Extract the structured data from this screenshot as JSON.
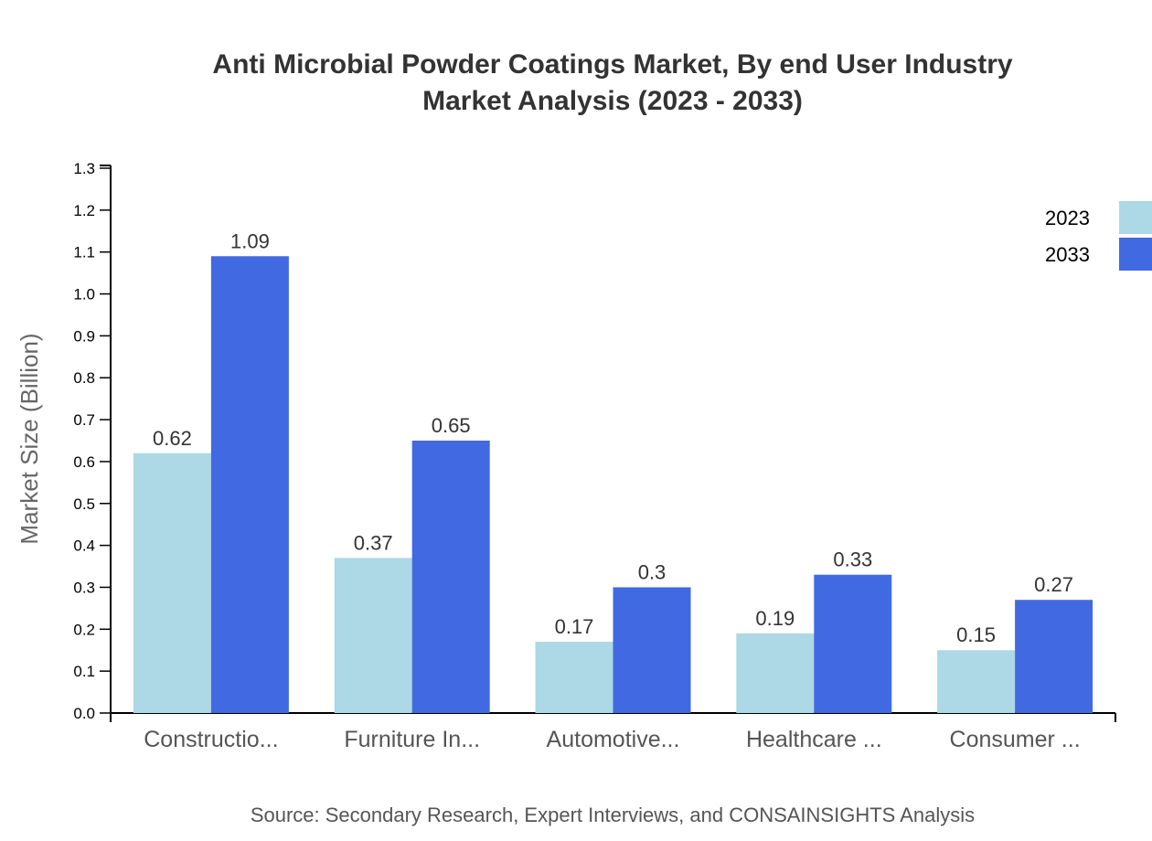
{
  "chart_data": {
    "type": "bar",
    "title": "Anti Microbial Powder Coatings Market, By end User Industry",
    "subtitle": "Market Analysis (2023 - 2033)",
    "xlabel": "",
    "ylabel": "Market Size (Billion)",
    "ylim": [
      0,
      1.3
    ],
    "yticks": [
      "0.0",
      "0.1",
      "0.2",
      "0.3",
      "0.4",
      "0.5",
      "0.6",
      "0.7",
      "0.8",
      "0.9",
      "1.0",
      "1.1",
      "1.2",
      "1.3"
    ],
    "categories": [
      "Constructio...",
      "Furniture In...",
      "Automotive...",
      "Healthcare ...",
      "Consumer ..."
    ],
    "series": [
      {
        "name": "2023",
        "color": "#add8e6",
        "values": [
          0.62,
          0.37,
          0.17,
          0.19,
          0.15
        ]
      },
      {
        "name": "2033",
        "color": "#4169e1",
        "values": [
          1.09,
          0.65,
          0.3,
          0.33,
          0.27
        ]
      }
    ],
    "grid": false,
    "legend": "top-right",
    "source": "Source: Secondary Research, Expert Interviews, and CONSAINSIGHTS Analysis"
  }
}
